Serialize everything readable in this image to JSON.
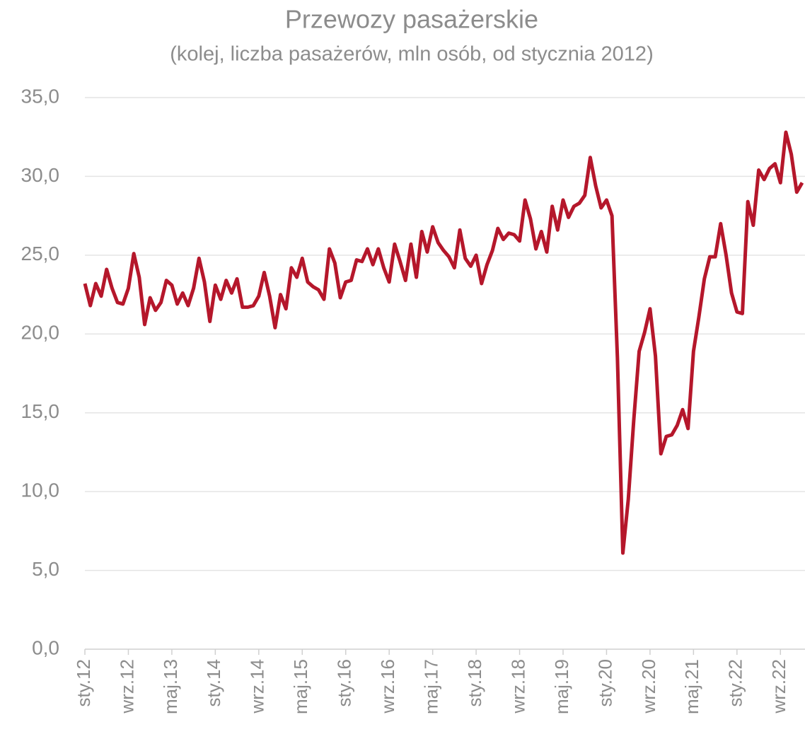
{
  "chart_data": {
    "type": "line",
    "title": "Przewozy pasażerskie",
    "subtitle": "(kolej, liczba pasażerów, mln osób, od stycznia 2012)",
    "categories": [
      "sty.12",
      null,
      null,
      null,
      null,
      null,
      null,
      null,
      "wrz.12",
      null,
      null,
      null,
      null,
      null,
      null,
      null,
      "maj.13",
      null,
      null,
      null,
      null,
      null,
      null,
      null,
      "sty.14",
      null,
      null,
      null,
      null,
      null,
      null,
      null,
      "wrz.14",
      null,
      null,
      null,
      null,
      null,
      null,
      null,
      "maj.15",
      null,
      null,
      null,
      null,
      null,
      null,
      null,
      "sty.16",
      null,
      null,
      null,
      null,
      null,
      null,
      null,
      "wrz.16",
      null,
      null,
      null,
      null,
      null,
      null,
      null,
      "maj.17",
      null,
      null,
      null,
      null,
      null,
      null,
      null,
      "sty.18",
      null,
      null,
      null,
      null,
      null,
      null,
      null,
      "wrz.18",
      null,
      null,
      null,
      null,
      null,
      null,
      null,
      "maj.19",
      null,
      null,
      null,
      null,
      null,
      null,
      null,
      "sty.20",
      null,
      null,
      null,
      null,
      null,
      null,
      null,
      "wrz.20",
      null,
      null,
      null,
      null,
      null,
      null,
      null,
      "maj.21",
      null,
      null,
      null,
      null,
      null,
      null,
      null,
      "sty.22",
      null,
      null,
      null,
      null,
      null,
      null,
      null,
      "wrz.22",
      null,
      null,
      null,
      null
    ],
    "series": [
      {
        "color": "#b5172b",
        "values": [
          23.2,
          21.8,
          23.2,
          22.4,
          24.1,
          22.9,
          22.0,
          21.9,
          22.9,
          25.1,
          23.6,
          20.6,
          22.3,
          21.5,
          22.0,
          23.4,
          23.1,
          21.9,
          22.6,
          21.8,
          22.9,
          24.8,
          23.3,
          20.8,
          23.1,
          22.2,
          23.4,
          22.6,
          23.5,
          21.7,
          21.7,
          21.8,
          22.4,
          23.9,
          22.4,
          20.4,
          22.5,
          21.6,
          24.2,
          23.6,
          24.8,
          23.3,
          23.0,
          22.8,
          22.2,
          25.4,
          24.5,
          22.3,
          23.3,
          23.4,
          24.7,
          24.6,
          25.4,
          24.4,
          25.4,
          24.2,
          23.3,
          25.7,
          24.6,
          23.4,
          25.7,
          23.6,
          26.5,
          25.2,
          26.8,
          25.8,
          25.3,
          24.9,
          24.2,
          26.6,
          24.8,
          24.3,
          25.0,
          23.2,
          24.4,
          25.3,
          26.7,
          26.0,
          26.4,
          26.3,
          25.9,
          28.5,
          27.3,
          25.4,
          26.5,
          25.2,
          28.1,
          26.6,
          28.5,
          27.4,
          28.1,
          28.3,
          28.8,
          31.2,
          29.4,
          28.0,
          28.5,
          27.5,
          18.5,
          6.1,
          9.5,
          14.5,
          18.9,
          20.1,
          21.6,
          18.6,
          12.4,
          13.5,
          13.6,
          14.2,
          15.2,
          14.0,
          18.9,
          21.1,
          23.5,
          24.9,
          24.9,
          27.0,
          25.0,
          22.6,
          21.4,
          21.3,
          28.4,
          26.9,
          30.4,
          29.8,
          30.5,
          30.8,
          29.6,
          32.8,
          31.4,
          29.0,
          29.6
        ]
      }
    ],
    "ylim": [
      0,
      35
    ],
    "yticks": [
      {
        "value": 0,
        "label": "0,0"
      },
      {
        "value": 5,
        "label": "5,0"
      },
      {
        "value": 10,
        "label": "10,0"
      },
      {
        "value": 15,
        "label": "15,0"
      },
      {
        "value": 20,
        "label": "20,0"
      },
      {
        "value": 25,
        "label": "25,0"
      },
      {
        "value": 30,
        "label": "30,0"
      },
      {
        "value": 35,
        "label": "35,0"
      }
    ],
    "grid": true
  }
}
